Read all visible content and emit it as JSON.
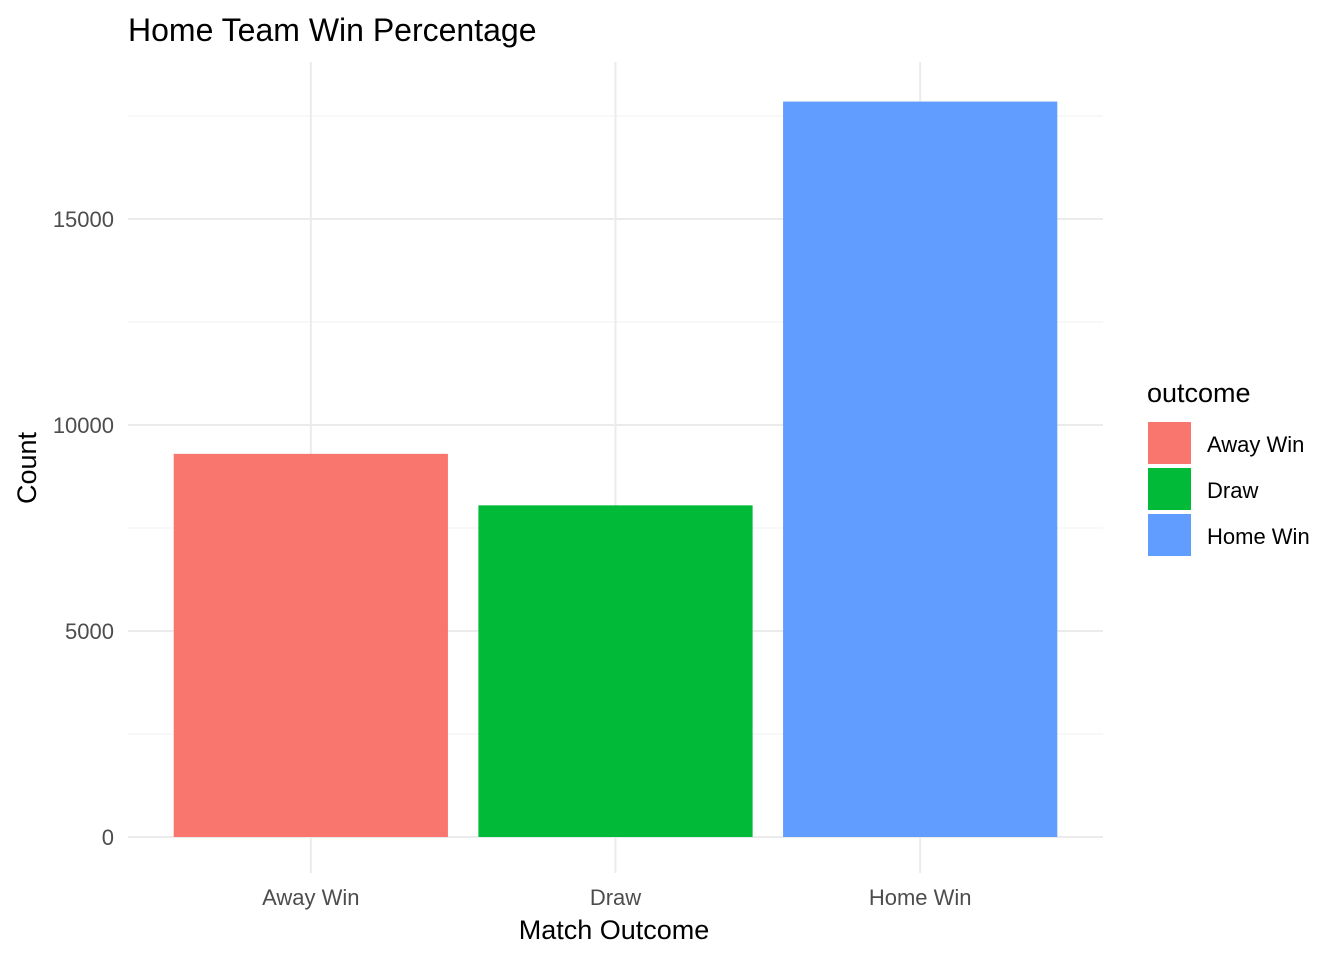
{
  "chart_data": {
    "type": "bar",
    "title": "Home Team Win Percentage",
    "xlabel": "Match Outcome",
    "ylabel": "Count",
    "categories": [
      "Away Win",
      "Draw",
      "Home Win"
    ],
    "values": [
      9300,
      8050,
      17850
    ],
    "colors": [
      "#F8766D",
      "#00BA38",
      "#619CFF"
    ],
    "ylim": [
      0,
      18700
    ],
    "yticks": [
      0,
      5000,
      10000,
      15000
    ],
    "yticks_minor": [
      2500,
      7500,
      12500,
      17500
    ],
    "grid": true,
    "legend": {
      "title": "outcome",
      "position": "right",
      "items": [
        {
          "label": "Away Win",
          "color": "#F8766D"
        },
        {
          "label": "Draw",
          "color": "#00BA38"
        },
        {
          "label": "Home Win",
          "color": "#619CFF"
        }
      ]
    }
  }
}
